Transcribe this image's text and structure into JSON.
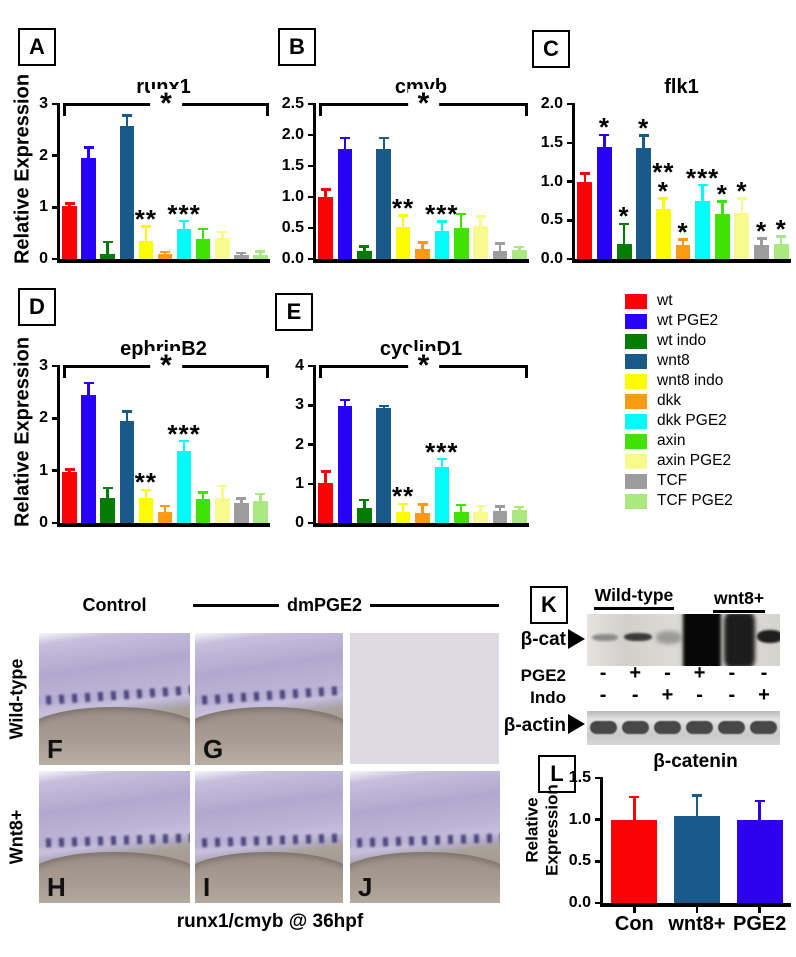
{
  "panel_letters": {
    "a": "A",
    "b": "B",
    "c": "C",
    "d": "D",
    "e": "E",
    "k": "K",
    "l": "L"
  },
  "legend": {
    "items": [
      {
        "label": "wt",
        "color": "#fb0207"
      },
      {
        "label": "wt PGE2",
        "color": "#2801f7"
      },
      {
        "label": "wt indo",
        "color": "#027c02"
      },
      {
        "label": "wnt8",
        "color": "#1a5a8a"
      },
      {
        "label": "wnt8 indo",
        "color": "#fcfc02"
      },
      {
        "label": "dkk",
        "color": "#fc9b13"
      },
      {
        "label": "dkk PGE2",
        "color": "#02fcfc"
      },
      {
        "label": "axin",
        "color": "#3fe202"
      },
      {
        "label": "axin PGE2",
        "color": "#f7fa8e"
      },
      {
        "label": "TCF",
        "color": "#9c9c9c"
      },
      {
        "label": "TCF PGE2",
        "color": "#abe87e"
      }
    ]
  },
  "chart_data": [
    {
      "id": "a",
      "type": "bar",
      "panel": "A",
      "title": "runx1",
      "ylabel": "Relative Expression",
      "ylim": [
        0,
        3
      ],
      "ytick_vals": [
        0,
        1,
        2,
        3
      ],
      "ytick_labels": [
        "0",
        "1",
        "2",
        "3"
      ],
      "categories": [
        "wt",
        "wt PGE2",
        "wt indo",
        "wnt8",
        "wnt8 indo",
        "dkk",
        "dkk PGE2",
        "axin",
        "axin PGE2",
        "TCF",
        "TCF PGE2"
      ],
      "values": [
        1.02,
        1.95,
        0.1,
        2.57,
        0.35,
        0.1,
        0.58,
        0.38,
        0.4,
        0.08,
        0.08
      ],
      "errors": [
        0.05,
        0.2,
        0.22,
        0.2,
        0.27,
        0.03,
        0.15,
        0.2,
        0.12,
        0.03,
        0.06
      ],
      "annotations": [
        "",
        "",
        "",
        "",
        "**",
        "",
        "***",
        "",
        "",
        "",
        ""
      ],
      "bracket_label": "*",
      "grid": false,
      "legend_position": "outside-right"
    },
    {
      "id": "b",
      "type": "bar",
      "panel": "B",
      "title": "cmyb",
      "ylabel": "",
      "ylim": [
        0,
        2.5
      ],
      "ytick_vals": [
        0,
        0.5,
        1,
        1.5,
        2,
        2.5
      ],
      "ytick_labels": [
        "0.0",
        "0.5",
        "1.0",
        "1.5",
        "2.0",
        "2.5"
      ],
      "categories": [
        "wt",
        "wt PGE2",
        "wt indo",
        "wnt8",
        "wnt8 indo",
        "dkk",
        "dkk PGE2",
        "axin",
        "axin PGE2",
        "TCF",
        "TCF PGE2"
      ],
      "values": [
        1.0,
        1.78,
        0.13,
        1.77,
        0.52,
        0.16,
        0.45,
        0.5,
        0.53,
        0.13,
        0.14
      ],
      "errors": [
        0.12,
        0.17,
        0.07,
        0.18,
        0.18,
        0.1,
        0.15,
        0.22,
        0.15,
        0.12,
        0.05
      ],
      "annotations": [
        "",
        "",
        "",
        "",
        "**",
        "",
        "***",
        "",
        "",
        "",
        ""
      ],
      "bracket_label": "*",
      "grid": false
    },
    {
      "id": "c",
      "type": "bar",
      "panel": "C",
      "title": "flk1",
      "ylabel": "",
      "ylim": [
        0,
        2
      ],
      "ytick_vals": [
        0,
        0.5,
        1,
        1.5,
        2
      ],
      "ytick_labels": [
        "0.0",
        "0.5",
        "1.0",
        "1.5",
        "2.0"
      ],
      "categories": [
        "wt",
        "wt PGE2",
        "wt indo",
        "wnt8",
        "wnt8 indo",
        "dkk",
        "dkk PGE2",
        "axin",
        "axin PGE2",
        "TCF",
        "TCF PGE2"
      ],
      "values": [
        1.0,
        1.45,
        0.2,
        1.43,
        0.65,
        0.18,
        0.75,
        0.58,
        0.6,
        0.18,
        0.19
      ],
      "errors": [
        0.1,
        0.15,
        0.25,
        0.16,
        0.13,
        0.07,
        0.2,
        0.16,
        0.18,
        0.08,
        0.1
      ],
      "annotations": [
        "",
        "*",
        "*",
        "*",
        "**\n*",
        "*",
        "***",
        "*",
        "*",
        "*",
        "*"
      ],
      "bracket_label": null,
      "grid": false
    },
    {
      "id": "d",
      "type": "bar",
      "panel": "D",
      "title": "ephrinB2",
      "ylabel": "Relative Expression",
      "ylim": [
        0,
        3
      ],
      "ytick_vals": [
        0,
        1,
        2,
        3
      ],
      "ytick_labels": [
        "0",
        "1",
        "2",
        "3"
      ],
      "categories": [
        "wt",
        "wt PGE2",
        "wt indo",
        "wnt8",
        "wnt8 indo",
        "dkk",
        "dkk PGE2",
        "axin",
        "axin PGE2",
        "TCF",
        "TCF PGE2"
      ],
      "values": [
        0.97,
        2.45,
        0.48,
        1.95,
        0.48,
        0.22,
        1.38,
        0.46,
        0.48,
        0.38,
        0.42
      ],
      "errors": [
        0.05,
        0.22,
        0.18,
        0.18,
        0.15,
        0.1,
        0.18,
        0.12,
        0.22,
        0.08,
        0.13
      ],
      "annotations": [
        "",
        "",
        "",
        "",
        "**",
        "",
        "***",
        "",
        "",
        "",
        ""
      ],
      "bracket_label": "*",
      "grid": false
    },
    {
      "id": "e",
      "type": "bar",
      "panel": "E",
      "title": "cyclinD1",
      "ylabel": "",
      "ylim": [
        0,
        4
      ],
      "ytick_vals": [
        0,
        1,
        2,
        3,
        4
      ],
      "ytick_labels": [
        "0",
        "1",
        "2",
        "3",
        "4"
      ],
      "categories": [
        "wt",
        "wt PGE2",
        "wt indo",
        "wnt8",
        "wnt8 indo",
        "dkk",
        "dkk PGE2",
        "axin",
        "axin PGE2",
        "TCF",
        "TCF PGE2"
      ],
      "values": [
        1.02,
        2.98,
        0.38,
        2.93,
        0.28,
        0.25,
        1.42,
        0.27,
        0.28,
        0.3,
        0.32
      ],
      "errors": [
        0.28,
        0.15,
        0.2,
        0.05,
        0.2,
        0.22,
        0.2,
        0.18,
        0.15,
        0.12,
        0.08
      ],
      "annotations": [
        "",
        "",
        "",
        "",
        "**",
        "",
        "***",
        "",
        "",
        "",
        ""
      ],
      "bracket_label": "*",
      "grid": false
    },
    {
      "id": "l",
      "type": "bar",
      "panel": "L",
      "title": "β-catenin",
      "ylabel": "Relative\nExpression",
      "ylim": [
        0,
        1.5
      ],
      "ytick_vals": [
        0,
        0.5,
        1,
        1.5
      ],
      "ytick_labels": [
        "0.0",
        "0.5",
        "1.0",
        "1.5"
      ],
      "categories": [
        "Con",
        "wnt8+",
        "PGE2"
      ],
      "values": [
        1.0,
        1.05,
        1.0
      ],
      "errors": [
        0.27,
        0.24,
        0.22
      ],
      "annotations": [
        "",
        "",
        ""
      ],
      "bar_colors": [
        "#fb0207",
        "#1a5a8a",
        "#2d01ee"
      ],
      "bracket_label": null,
      "show_xlabels": true,
      "grid": false
    }
  ],
  "insitu": {
    "col_header_left": "Control",
    "col_header_right": "dmPGE2",
    "row_labels": [
      "Wild-type",
      "Wnt8+"
    ],
    "image_labels": [
      "F",
      "G",
      "H",
      "I",
      "J"
    ],
    "caption": "runx1/cmyb @ 36hpf"
  },
  "western": {
    "group_headers": [
      "Wild-type",
      "wnt8+"
    ],
    "band_labels": [
      "β-cat",
      "β-actin"
    ],
    "row_labels": [
      "PGE2",
      "Indo"
    ],
    "pge2_signs": [
      "-",
      "+",
      "-",
      "+",
      "-",
      "-"
    ],
    "indo_signs": [
      "-",
      "-",
      "+",
      "-",
      "-",
      "+"
    ]
  }
}
